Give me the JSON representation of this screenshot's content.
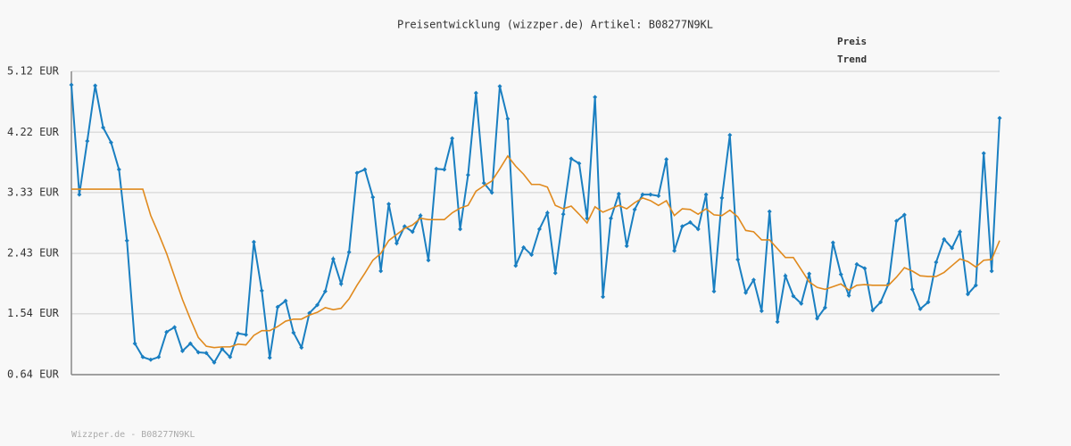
{
  "chart_data": {
    "type": "line",
    "title": "Preisentwicklung (wizzper.de) Artikel: B08277N9KL",
    "footer": "Wizzper.de - B08277N9KL",
    "ylim": [
      0.64,
      5.12
    ],
    "yticks": [
      {
        "value": 0.64,
        "label": "0.64 EUR"
      },
      {
        "value": 1.54,
        "label": "1.54 EUR"
      },
      {
        "value": 2.43,
        "label": "2.43 EUR"
      },
      {
        "value": 3.33,
        "label": "3.33 EUR"
      },
      {
        "value": 4.22,
        "label": "4.22 EUR"
      },
      {
        "value": 5.12,
        "label": "5.12 EUR"
      }
    ],
    "grid": true,
    "legend": "top-right",
    "series": [
      {
        "name": "Preis",
        "color": "#1a7fc1",
        "markers": true,
        "values": [
          4.92,
          3.3,
          4.09,
          4.91,
          4.29,
          4.07,
          3.67,
          2.62,
          1.1,
          0.9,
          0.86,
          0.9,
          1.27,
          1.34,
          0.99,
          1.1,
          0.97,
          0.96,
          0.82,
          1.02,
          0.9,
          1.25,
          1.23,
          2.6,
          1.88,
          0.89,
          1.64,
          1.73,
          1.26,
          1.04,
          1.55,
          1.67,
          1.87,
          2.35,
          1.98,
          2.45,
          3.62,
          3.67,
          3.26,
          2.17,
          3.16,
          2.58,
          2.83,
          2.75,
          2.99,
          2.33,
          3.68,
          3.67,
          4.13,
          2.79,
          3.59,
          4.8,
          3.47,
          3.33,
          4.9,
          4.42,
          2.25,
          2.52,
          2.41,
          2.79,
          3.03,
          2.14,
          3.01,
          3.83,
          3.76,
          2.95,
          4.74,
          1.79,
          2.95,
          3.31,
          2.54,
          3.08,
          3.3,
          3.3,
          3.28,
          3.82,
          2.47,
          2.83,
          2.89,
          2.79,
          3.3,
          1.87,
          3.25,
          4.18,
          2.34,
          1.85,
          2.04,
          1.58,
          3.05,
          1.42,
          2.1,
          1.8,
          1.69,
          2.13,
          1.47,
          1.63,
          2.59,
          2.12,
          1.81,
          2.27,
          2.21,
          1.59,
          1.71,
          1.98,
          2.91,
          3.0,
          1.9,
          1.61,
          1.71,
          2.3,
          2.64,
          2.51,
          2.75,
          1.83,
          1.96,
          3.91,
          2.17,
          4.43
        ]
      },
      {
        "name": "Trend",
        "color": "#e08a1e",
        "markers": false,
        "values": [
          3.38,
          3.38,
          3.38,
          3.38,
          3.38,
          3.38,
          3.38,
          3.38,
          3.38,
          3.38,
          2.99,
          2.72,
          2.43,
          2.09,
          1.75,
          1.46,
          1.19,
          1.06,
          1.04,
          1.05,
          1.05,
          1.09,
          1.08,
          1.22,
          1.29,
          1.29,
          1.35,
          1.43,
          1.46,
          1.46,
          1.52,
          1.56,
          1.63,
          1.6,
          1.62,
          1.76,
          1.96,
          2.14,
          2.33,
          2.43,
          2.62,
          2.71,
          2.8,
          2.85,
          2.95,
          2.93,
          2.93,
          2.93,
          3.03,
          3.1,
          3.14,
          3.35,
          3.43,
          3.5,
          3.68,
          3.87,
          3.72,
          3.6,
          3.45,
          3.45,
          3.41,
          3.14,
          3.09,
          3.13,
          3.01,
          2.88,
          3.12,
          3.04,
          3.09,
          3.14,
          3.09,
          3.18,
          3.25,
          3.21,
          3.14,
          3.21,
          2.99,
          3.09,
          3.08,
          3.01,
          3.09,
          3.0,
          2.99,
          3.07,
          2.97,
          2.77,
          2.75,
          2.63,
          2.63,
          2.5,
          2.37,
          2.37,
          2.19,
          2.01,
          1.93,
          1.9,
          1.94,
          1.98,
          1.89,
          1.96,
          1.97,
          1.96,
          1.96,
          1.96,
          2.08,
          2.22,
          2.17,
          2.1,
          2.09,
          2.09,
          2.15,
          2.25,
          2.35,
          2.31,
          2.23,
          2.33,
          2.34,
          2.62
        ]
      }
    ]
  }
}
